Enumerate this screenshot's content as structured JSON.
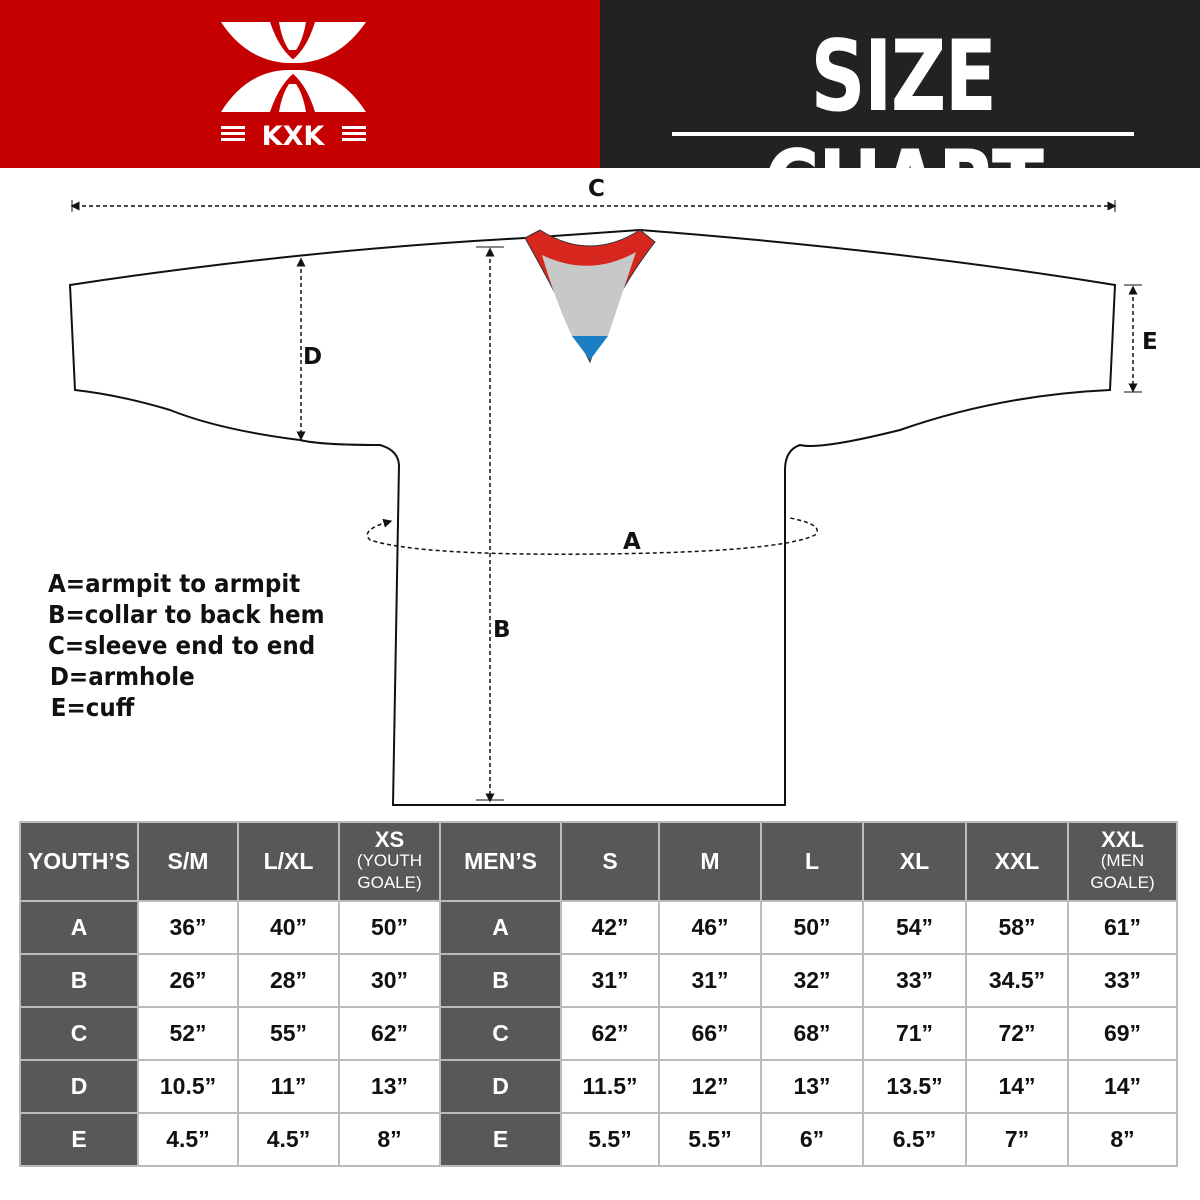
{
  "brand": {
    "logo_text": "KXK",
    "color": "#c40000"
  },
  "header": {
    "title": "SIZE CHART"
  },
  "diagram": {
    "labels": {
      "a": "A",
      "b": "B",
      "c": "C",
      "d": "D",
      "e": "E"
    },
    "collar_colors": {
      "trim": "#d7261e",
      "inner": "#c8c8c8",
      "accent": "#1a7fc4"
    }
  },
  "legend": [
    "A=armpit to armpit",
    "B=collar to back hem",
    "C=sleeve end to end",
    "D=armhole",
    "E=cuff"
  ],
  "table": {
    "youth_header": "YOUTH’S",
    "youth_sizes": [
      {
        "main": "S/M",
        "sub1": "",
        "sub2": ""
      },
      {
        "main": "L/XL",
        "sub1": "",
        "sub2": ""
      },
      {
        "main": "XS",
        "sub1": "(YOUTH",
        "sub2": "GOALE)"
      }
    ],
    "men_header": "MEN’S",
    "men_sizes": [
      {
        "main": "S",
        "sub1": "",
        "sub2": ""
      },
      {
        "main": "M",
        "sub1": "",
        "sub2": ""
      },
      {
        "main": "L",
        "sub1": "",
        "sub2": ""
      },
      {
        "main": "XL",
        "sub1": "",
        "sub2": ""
      },
      {
        "main": "XXL",
        "sub1": "",
        "sub2": ""
      },
      {
        "main": "XXL",
        "sub1": "(MEN",
        "sub2": "GOALE)"
      }
    ],
    "rows": [
      {
        "label": "A",
        "youth": [
          "36”",
          "40”",
          "50”"
        ],
        "men": [
          "42”",
          "46”",
          "50”",
          "54”",
          "58”",
          "61”"
        ]
      },
      {
        "label": "B",
        "youth": [
          "26”",
          "28”",
          "30”"
        ],
        "men": [
          "31”",
          "31”",
          "32”",
          "33”",
          "34.5”",
          "33”"
        ]
      },
      {
        "label": "C",
        "youth": [
          "52”",
          "55”",
          "62”"
        ],
        "men": [
          "62”",
          "66”",
          "68”",
          "71”",
          "72”",
          "69”"
        ]
      },
      {
        "label": "D",
        "youth": [
          "10.5”",
          "11”",
          "13”"
        ],
        "men": [
          "11.5”",
          "12”",
          "13”",
          "13.5”",
          "14”",
          "14”"
        ]
      },
      {
        "label": "E",
        "youth": [
          "4.5”",
          "4.5”",
          "8”"
        ],
        "men": [
          "5.5”",
          "5.5”",
          "6”",
          "6.5”",
          "7”",
          "8”"
        ]
      }
    ]
  }
}
